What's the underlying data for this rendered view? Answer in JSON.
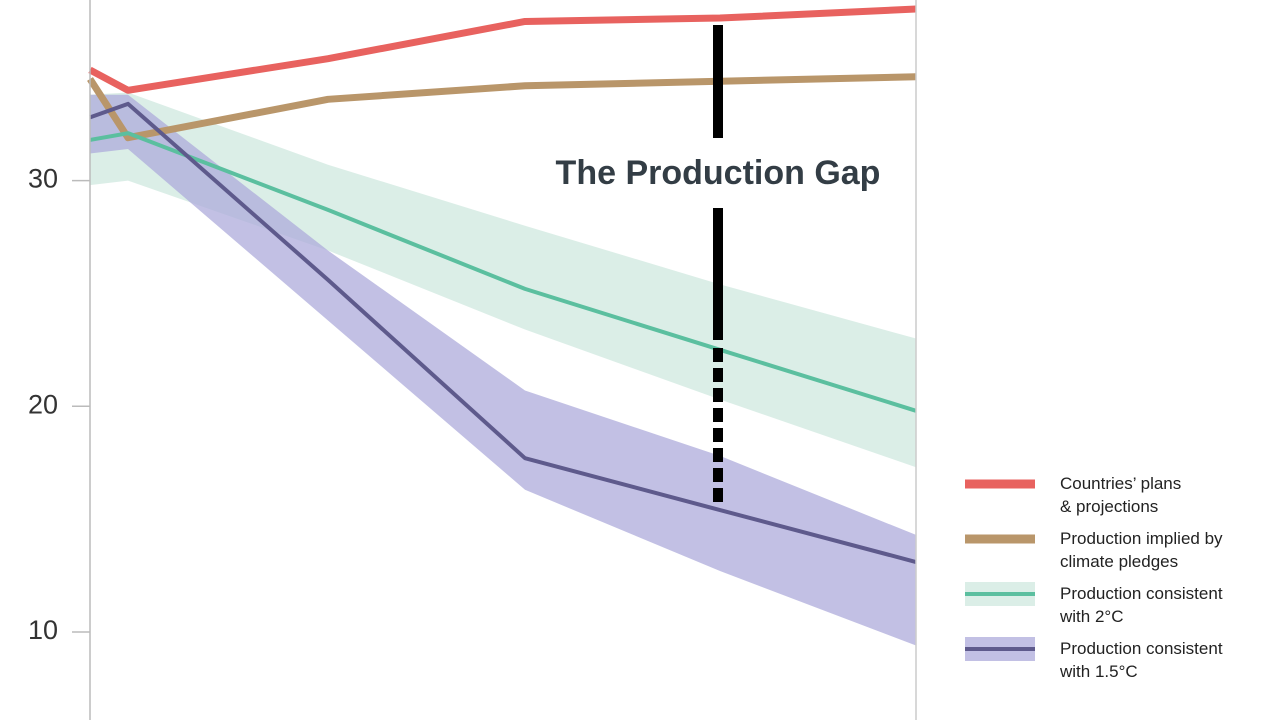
{
  "chart_data": {
    "type": "line",
    "annotation": "The Production Gap",
    "categories": [
      null,
      null,
      null,
      null,
      null,
      null
    ],
    "ylim": [
      6.1,
      38.0
    ],
    "yticks": [
      10,
      20,
      30
    ],
    "series": [
      {
        "name": "Countries’ plans\n& projections",
        "color": "#e8625f",
        "values": [
          34.9,
          34.0,
          35.4,
          37.05,
          37.2,
          37.6
        ]
      },
      {
        "name": "Production implied by\n climate pledges",
        "color": "#b9966a",
        "values": [
          34.5,
          31.9,
          33.6,
          34.2,
          34.4,
          34.6
        ]
      },
      {
        "name": "Production consistent\nwith 2°C",
        "color": "#5bbf9f",
        "band_color": "#cfe8df",
        "values": [
          31.8,
          32.1,
          28.7,
          25.2,
          22.5,
          19.8
        ],
        "band_upper": [
          33.8,
          33.9,
          30.7,
          28.0,
          25.4,
          23.0
        ],
        "band_lower": [
          29.8,
          30.0,
          26.9,
          23.4,
          20.3,
          17.3
        ]
      },
      {
        "name": "Production consistent\nwith 1.5°C",
        "color": "#5e5a8c",
        "band_color": "#aeabdb",
        "values": [
          32.8,
          33.4,
          25.6,
          17.7,
          15.4,
          13.1
        ],
        "band_upper": [
          33.8,
          33.8,
          26.9,
          20.7,
          17.8,
          14.3
        ],
        "band_lower": [
          31.2,
          31.4,
          23.8,
          16.3,
          12.7,
          9.4
        ]
      }
    ]
  }
}
